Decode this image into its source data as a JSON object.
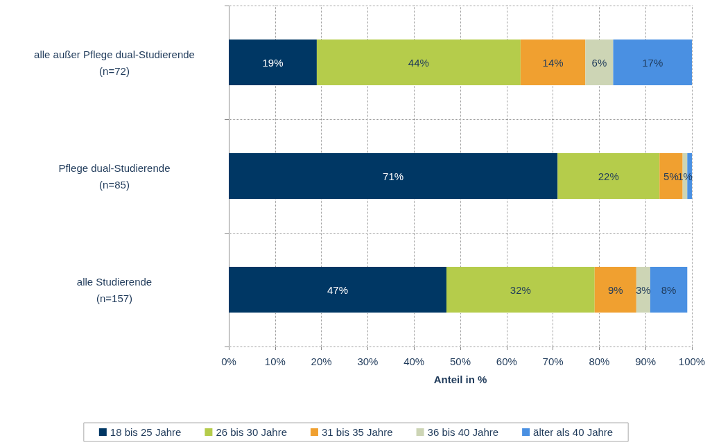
{
  "chart_data": {
    "type": "bar",
    "orientation": "horizontal",
    "stacked": true,
    "xlabel": "Anteil in %",
    "categories": [
      "alle außer Pflege dual-Studierende (n=72)",
      "Pflege dual-Studierende (n=85)",
      "alle Studierende (n=157)"
    ],
    "series": [
      {
        "name": "18 bis 25 Jahre",
        "color": "#003764",
        "values": [
          19,
          71,
          47
        ],
        "value_labels": [
          "19%",
          "71%",
          "47%"
        ]
      },
      {
        "name": "26 bis 30 Jahre",
        "color": "#b5cc4b",
        "values": [
          44,
          22,
          32
        ],
        "value_labels": [
          "44%",
          "22%",
          "32%"
        ]
      },
      {
        "name": "31 bis 35 Jahre",
        "color": "#f0a030",
        "values": [
          14,
          5,
          9
        ],
        "value_labels": [
          "14%",
          "5%",
          "9%"
        ]
      },
      {
        "name": "36 bis 40 Jahre",
        "color": "#cdd5b5",
        "values": [
          6,
          1,
          3
        ],
        "value_labels": [
          "6%",
          "1%",
          "3%"
        ]
      },
      {
        "name": "älter als 40 Jahre",
        "color": "#4a90e2",
        "values": [
          17,
          1,
          8
        ],
        "value_labels": [
          "17%",
          null,
          "8%"
        ]
      }
    ],
    "xlim": [
      0,
      100
    ],
    "xticks": [
      {
        "value": 0,
        "label": "0%"
      },
      {
        "value": 10,
        "label": "10%"
      },
      {
        "value": 20,
        "label": "20%"
      },
      {
        "value": 30,
        "label": "30%"
      },
      {
        "value": 40,
        "label": "40%"
      },
      {
        "value": 50,
        "label": "50%"
      },
      {
        "value": 60,
        "label": "60%"
      },
      {
        "value": 70,
        "label": "70%"
      },
      {
        "value": 80,
        "label": "80%"
      },
      {
        "value": 90,
        "label": "90%"
      },
      {
        "value": 100,
        "label": "100%"
      }
    ],
    "grid": true,
    "legend": "bottom"
  }
}
